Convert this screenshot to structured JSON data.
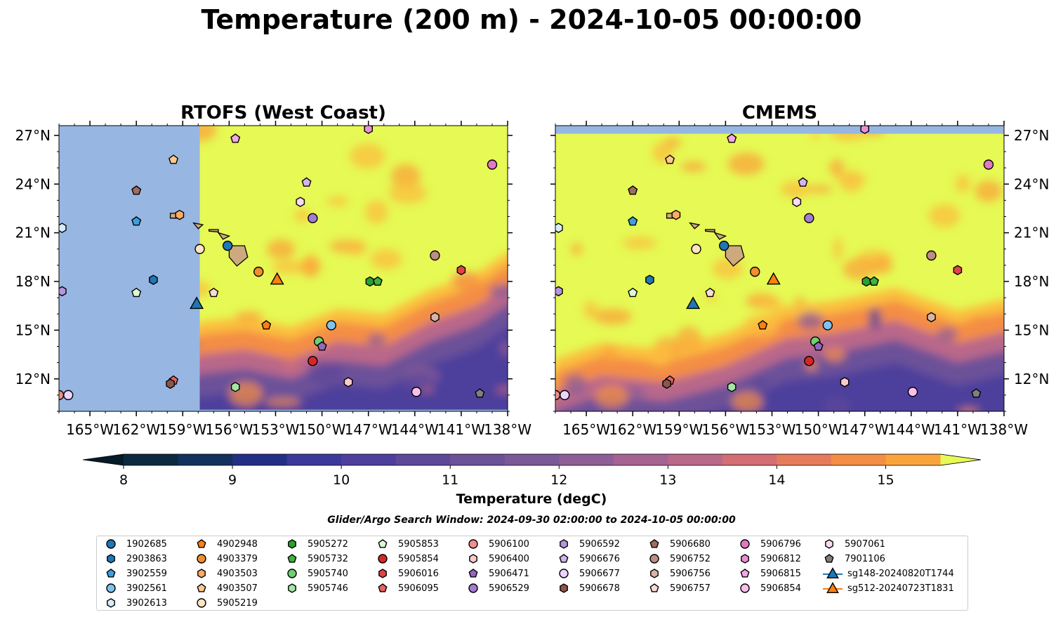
{
  "title": "Temperature (200 m) - 2024-10-05 00:00:00",
  "colorbar": {
    "label": "Temperature (degC)",
    "ticks": [
      8,
      9,
      10,
      11,
      12,
      13,
      14,
      15
    ],
    "min": 8,
    "max": 15.5,
    "step": 0.5,
    "colors": [
      "#0c2a3f",
      "#13305e",
      "#232f85",
      "#3b3a9b",
      "#4e3f9c",
      "#5e4899",
      "#6c5199",
      "#7b5898",
      "#8e5e97",
      "#a56392",
      "#b9688a",
      "#d36e74",
      "#e67b5b",
      "#f48d45",
      "#f9a43b",
      "#fbbd3d",
      "#f5d946"
    ],
    "extend_low": "#061a27",
    "extend_high": "#e6f954"
  },
  "subtitle": "Glider/Argo Search Window: 2024-09-30 02:00:00 to 2024-10-05 00:00:00",
  "chart_data": [
    {
      "type": "heatmap",
      "title": "RTOFS (West Coast)",
      "x_ticks": [
        "165°W",
        "162°W",
        "159°W",
        "156°W",
        "153°W",
        "150°W",
        "147°W",
        "144°W",
        "141°W",
        "138°W"
      ],
      "y_ticks": [
        "27°N",
        "24°N",
        "21°N",
        "18°N",
        "15°N",
        "12°N"
      ],
      "x_range": [
        -167,
        -138
      ],
      "y_range": [
        10,
        27.6
      ],
      "no_data_color": "#97b6e2",
      "no_data_west_of": -157.9,
      "no_data_south_of": 10.1,
      "warm_color": "#e6f954",
      "warm_region_boundary": [
        [
          -157.9,
          15.5
        ],
        [
          -155,
          15.8
        ],
        [
          -152,
          15.2
        ],
        [
          -149,
          16.3
        ],
        [
          -146,
          16.0
        ],
        [
          -143,
          17.5
        ],
        [
          -140,
          18.5
        ],
        [
          -138,
          19.8
        ]
      ]
    },
    {
      "type": "heatmap",
      "title": "CMEMS",
      "x_ticks": [
        "165°W",
        "162°W",
        "159°W",
        "156°W",
        "153°W",
        "150°W",
        "147°W",
        "144°W",
        "141°W",
        "138°W"
      ],
      "y_ticks": [
        "27°N",
        "24°N",
        "21°N",
        "18°N",
        "15°N",
        "12°N"
      ],
      "x_range": [
        -167,
        -138
      ],
      "y_range": [
        10,
        27.6
      ],
      "no_data_color": "#97b6e2",
      "no_data_north_of": 27.1,
      "warm_color": "#e6f954",
      "warm_region_boundary": [
        [
          -167,
          13.2
        ],
        [
          -164,
          14.2
        ],
        [
          -160,
          13.8
        ],
        [
          -156,
          14.8
        ],
        [
          -152,
          16.5
        ],
        [
          -149,
          16.8
        ],
        [
          -145,
          17.6
        ],
        [
          -141,
          16.2
        ],
        [
          -138,
          16.9
        ]
      ]
    }
  ],
  "island": {
    "color": "#cdaa7d",
    "big_island": [
      [
        -156.0,
        20.2
      ],
      [
        -155.0,
        20.2
      ],
      [
        -154.8,
        19.5
      ],
      [
        -155.5,
        18.95
      ],
      [
        -156.0,
        19.5
      ]
    ],
    "maui": [
      [
        -156.7,
        21.0
      ],
      [
        -156.0,
        20.8
      ],
      [
        -156.4,
        20.6
      ]
    ],
    "molokai": [
      [
        -157.3,
        21.2
      ],
      [
        -156.7,
        21.2
      ],
      [
        -156.7,
        21.05
      ],
      [
        -157.3,
        21.1
      ]
    ],
    "oahu": [
      [
        -158.3,
        21.6
      ],
      [
        -157.7,
        21.5
      ],
      [
        -158.0,
        21.25
      ]
    ],
    "kauai": [
      [
        -159.8,
        22.2
      ],
      [
        -159.3,
        22.2
      ],
      [
        -159.4,
        21.9
      ],
      [
        -159.8,
        21.9
      ]
    ]
  },
  "platforms": [
    {
      "id": "1902685",
      "color": "#1f77b4",
      "marker": "circle",
      "lon": -156.1,
      "lat": 20.2
    },
    {
      "id": "2903863",
      "color": "#1f77b4",
      "marker": "hexagon",
      "lon": -160.9,
      "lat": 18.1
    },
    {
      "id": "3902559",
      "color": "#3c9ee0",
      "marker": "pentagon",
      "lon": -162.0,
      "lat": 21.7
    },
    {
      "id": "3902561",
      "color": "#7ec2ee",
      "marker": "circle",
      "lon": -149.4,
      "lat": 15.3
    },
    {
      "id": "3902613",
      "color": "#d5ecfb",
      "marker": "hexagon",
      "lon": -166.8,
      "lat": 21.3
    },
    {
      "id": "4902948",
      "color": "#ff7f0e",
      "marker": "pentagon",
      "lon": -153.6,
      "lat": 15.3
    },
    {
      "id": "4903379",
      "color": "#f28e2b",
      "marker": "circle",
      "lon": -154.1,
      "lat": 18.6
    },
    {
      "id": "4903503",
      "color": "#ffab63",
      "marker": "hexagon",
      "lon": -159.2,
      "lat": 22.1
    },
    {
      "id": "4903507",
      "color": "#ffc98a",
      "marker": "pentagon",
      "lon": -159.6,
      "lat": 25.5
    },
    {
      "id": "5905219",
      "color": "#ffe4c2",
      "marker": "circle",
      "lon": -157.9,
      "lat": 20.0
    },
    {
      "id": "5905272",
      "color": "#2ca02c",
      "marker": "hexagon",
      "lon": -146.9,
      "lat": 18.0
    },
    {
      "id": "5905732",
      "color": "#3fb23f",
      "marker": "pentagon",
      "lon": -146.4,
      "lat": 18.0
    },
    {
      "id": "5905740",
      "color": "#6fd06f",
      "marker": "circle",
      "lon": -150.2,
      "lat": 14.3
    },
    {
      "id": "5905746",
      "color": "#a3e6a3",
      "marker": "hexagon",
      "lon": -155.6,
      "lat": 11.5
    },
    {
      "id": "5905853",
      "color": "#dcf9d6",
      "marker": "pentagon",
      "lon": -162.0,
      "lat": 17.3
    },
    {
      "id": "5905854",
      "color": "#d62728",
      "marker": "circle",
      "lon": -150.6,
      "lat": 13.1
    },
    {
      "id": "5906016",
      "color": "#e04545",
      "marker": "hexagon",
      "lon": -141.0,
      "lat": 18.7
    },
    {
      "id": "5906095",
      "color": "#e86262",
      "marker": "pentagon",
      "lon": -159.6,
      "lat": 11.9
    },
    {
      "id": "5906100",
      "color": "#f08f8f",
      "marker": "circle",
      "lon": -167.0,
      "lat": 11.0
    },
    {
      "id": "5906400",
      "color": "#fccaca",
      "marker": "hexagon",
      "lon": -148.3,
      "lat": 11.8
    },
    {
      "id": "5906471",
      "color": "#9467bd",
      "marker": "pentagon",
      "lon": -150.0,
      "lat": 14.0
    },
    {
      "id": "5906529",
      "color": "#a47cd0",
      "marker": "circle",
      "lon": -150.6,
      "lat": 21.9
    },
    {
      "id": "5906592",
      "color": "#b594e0",
      "marker": "hexagon",
      "lon": -166.8,
      "lat": 17.4
    },
    {
      "id": "5906676",
      "color": "#d2b4f2",
      "marker": "pentagon",
      "lon": -151.0,
      "lat": 24.1
    },
    {
      "id": "5906677",
      "color": "#ecd4ff",
      "marker": "circle",
      "lon": -166.4,
      "lat": 11.0
    },
    {
      "id": "5906678",
      "color": "#8c564b",
      "marker": "hexagon",
      "lon": -159.8,
      "lat": 11.7
    },
    {
      "id": "5906680",
      "color": "#a06c5f",
      "marker": "pentagon",
      "lon": -162.0,
      "lat": 23.6
    },
    {
      "id": "5906752",
      "color": "#bc8d82",
      "marker": "circle",
      "lon": -142.7,
      "lat": 19.6
    },
    {
      "id": "5906756",
      "color": "#d8b3a6",
      "marker": "hexagon",
      "lon": -142.7,
      "lat": 15.8
    },
    {
      "id": "5906757",
      "color": "#f8dcd2",
      "marker": "pentagon",
      "lon": -157.0,
      "lat": 17.3
    },
    {
      "id": "5906796",
      "color": "#e377c2",
      "marker": "circle",
      "lon": -139.0,
      "lat": 25.2
    },
    {
      "id": "5906812",
      "color": "#ec8fd2",
      "marker": "hexagon",
      "lon": -147.0,
      "lat": 27.4
    },
    {
      "id": "5906815",
      "color": "#f4a8e2",
      "marker": "pentagon",
      "lon": -155.6,
      "lat": 26.8
    },
    {
      "id": "5906854",
      "color": "#f9bfeb",
      "marker": "circle",
      "lon": -143.9,
      "lat": 11.2
    },
    {
      "id": "5907061",
      "color": "#fbdaf1",
      "marker": "hexagon",
      "lon": -151.4,
      "lat": 22.9
    },
    {
      "id": "7901106",
      "color": "#7f7f7f",
      "marker": "pentagon",
      "lon": -139.8,
      "lat": 11.1
    },
    {
      "id": "sg148-20240820T1744",
      "color": "#1f77b4",
      "marker": "triangle",
      "lon": -158.1,
      "lat": 16.6
    },
    {
      "id": "sg512-20240723T1831",
      "color": "#ff7f0e",
      "marker": "triangle",
      "lon": -152.9,
      "lat": 18.1
    }
  ]
}
